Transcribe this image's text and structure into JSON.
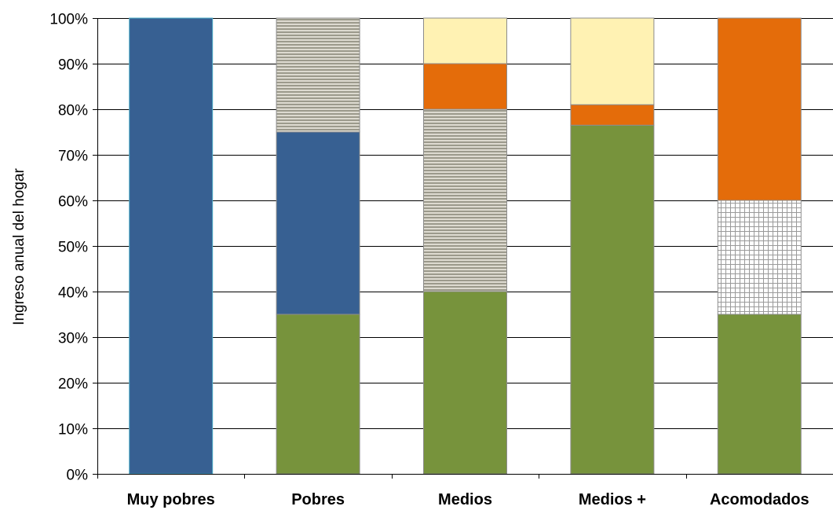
{
  "chart_data": {
    "type": "bar",
    "stacked": true,
    "title": "",
    "xlabel": "",
    "ylabel": "Ingreso anual del hogar",
    "ylim": [
      0,
      100
    ],
    "ytick_step": 10,
    "ytick_suffix": "%",
    "grid": true,
    "legend": "none",
    "categories": [
      "Muy pobres",
      "Pobres",
      "Medios",
      "Medios +",
      "Acomodados"
    ],
    "series": [
      {
        "color": "#77933C",
        "pattern": "solid",
        "values": [
          0,
          35,
          40,
          76.5,
          35
        ]
      },
      {
        "color": "#376092",
        "pattern": "solid",
        "values": [
          100,
          40,
          0,
          0,
          0
        ]
      },
      {
        "color": "#DAD7C8",
        "pattern": "horizontal-stripes",
        "values": [
          0,
          25,
          40,
          0,
          0
        ]
      },
      {
        "color": "#FFFFFF",
        "pattern": "grid",
        "values": [
          0,
          0,
          0,
          0,
          25
        ]
      },
      {
        "color": "#E46C0A",
        "pattern": "solid",
        "values": [
          0,
          0,
          10,
          4.5,
          40
        ]
      },
      {
        "color": "#FFF2B3",
        "pattern": "solid",
        "values": [
          0,
          0,
          10,
          19,
          0
        ]
      }
    ]
  }
}
